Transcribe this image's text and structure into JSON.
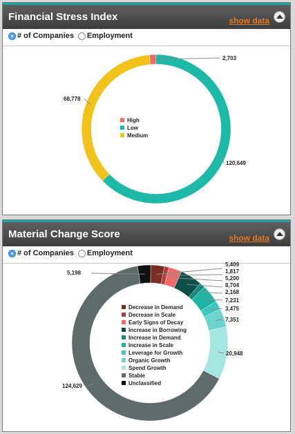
{
  "panels": [
    {
      "title": "Financial Stress Index",
      "show_data": "show data",
      "radios": [
        {
          "label": "# of Companies",
          "selected": true
        },
        {
          "label": "Employment",
          "selected": false
        }
      ]
    },
    {
      "title": "Material Change Score",
      "show_data": "show data",
      "radios": [
        {
          "label": "# of Companies",
          "selected": true
        },
        {
          "label": "Employment",
          "selected": false
        }
      ]
    }
  ],
  "colors": {
    "header_accent": "#1aa7a3",
    "link": "#e8781f"
  },
  "chart_data": [
    {
      "type": "pie",
      "title": "Financial Stress Index",
      "slices": [
        {
          "name": "High",
          "value": 2703,
          "label": "2,703",
          "color": "#f26b6b"
        },
        {
          "name": "Low",
          "value": 120649,
          "label": "120,649",
          "color": "#1cb8a8"
        },
        {
          "name": "Medium",
          "value": 68778,
          "label": "68,778",
          "color": "#f2c21a"
        }
      ],
      "legend": [
        "High",
        "Low",
        "Medium"
      ]
    },
    {
      "type": "pie",
      "title": "Material Change Score",
      "slices": [
        {
          "name": "Decrease in Demand",
          "value": 5409,
          "label": "5,409",
          "color": "#7a2e26"
        },
        {
          "name": "Decrease in Scale",
          "value": 1817,
          "label": "1,817",
          "color": "#b03c3c"
        },
        {
          "name": "Early Signs of Decay",
          "value": 5200,
          "label": "5,200",
          "color": "#f06a6a"
        },
        {
          "name": "Increase in Borrowing",
          "value": 8704,
          "label": "8,704",
          "color": "#0c4f47"
        },
        {
          "name": "Increase in Demand",
          "value": 2168,
          "label": "2,168",
          "color": "#158a7e"
        },
        {
          "name": "Increase in Scale",
          "value": 7231,
          "label": "7,231",
          "color": "#1fb3a3"
        },
        {
          "name": "Leverage for Growth",
          "value": 3475,
          "label": "3,475",
          "color": "#3cc6c0"
        },
        {
          "name": "Organic Growth",
          "value": 7351,
          "label": "7,351",
          "color": "#6ed3cd"
        },
        {
          "name": "Spend Growth",
          "value": 20948,
          "label": "20,948",
          "color": "#a6e6e1"
        },
        {
          "name": "Stable",
          "value": 124629,
          "label": "124,629",
          "color": "#5f6b6b"
        },
        {
          "name": "Unclassified",
          "value": 5198,
          "label": "5,198",
          "color": "#111111"
        }
      ],
      "legend": [
        "Decrease in Demand",
        "Decrease in Scale",
        "Early Signs of Decay",
        "Increase in Borrowing",
        "Increase in Demand",
        "Increase in Scale",
        "Leverage for Growth",
        "Organic Growth",
        "Spend Growth",
        "Stable",
        "Unclassified"
      ]
    }
  ]
}
